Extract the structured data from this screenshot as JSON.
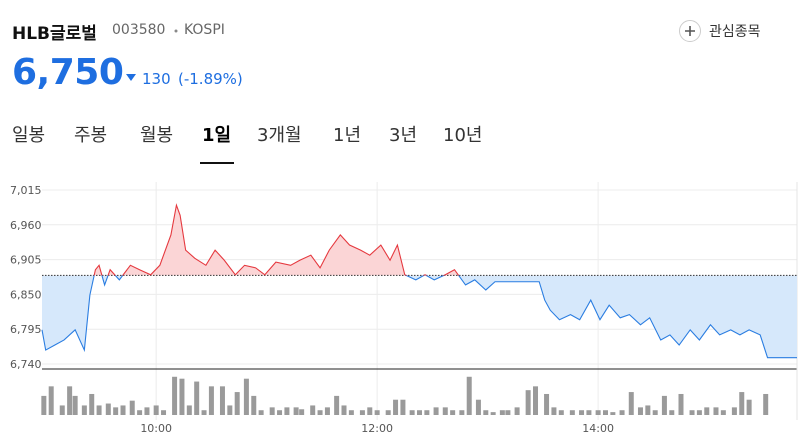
{
  "header": {
    "name": "HLB글로벌",
    "code": "003580",
    "market": "KOSPI",
    "price": "6,750",
    "change": "130",
    "change_percent": "(-1.89%)",
    "watchlist": "관심종목"
  },
  "tabs": {
    "items": [
      "일봉",
      "주봉",
      "월봉",
      "1일",
      "3개월",
      "1년",
      "3년",
      "10년"
    ],
    "active": 3
  },
  "chart_data": {
    "type": "line",
    "x": [
      538,
      540,
      545,
      550,
      556,
      561,
      564,
      567,
      569,
      572,
      575,
      580,
      586,
      591,
      597,
      602,
      608,
      611,
      613,
      616,
      621,
      627,
      632,
      637,
      643,
      648,
      654,
      659,
      665,
      673,
      678,
      684,
      689,
      694,
      700,
      705,
      711,
      716,
      722,
      727,
      731,
      735,
      741,
      746,
      751,
      757,
      762,
      768,
      773,
      779,
      784,
      792,
      803,
      808,
      811,
      814,
      819,
      825,
      830,
      836,
      841,
      846,
      852,
      857,
      863,
      868,
      874,
      879,
      884,
      890,
      895,
      901,
      906,
      912,
      917,
      922,
      928,
      932,
      948
    ],
    "values": [
      6794,
      6762,
      6770,
      6778,
      6794,
      6762,
      6849,
      6889,
      6896,
      6865,
      6889,
      6873,
      6896,
      6889,
      6881,
      6896,
      6944,
      6991,
      6975,
      6920,
      6907,
      6896,
      6920,
      6904,
      6881,
      6896,
      6892,
      6881,
      6901,
      6896,
      6904,
      6912,
      6892,
      6920,
      6944,
      6928,
      6920,
      6912,
      6928,
      6904,
      6928,
      6881,
      6873,
      6881,
      6873,
      6881,
      6889,
      6865,
      6873,
      6857,
      6870,
      6870,
      6870,
      6870,
      6841,
      6825,
      6810,
      6818,
      6810,
      6841,
      6810,
      6833,
      6813,
      6818,
      6802,
      6813,
      6778,
      6786,
      6770,
      6794,
      6778,
      6802,
      6786,
      6794,
      6786,
      6794,
      6786,
      6750,
      6750
    ],
    "baseline": 6880,
    "xlim": [
      538,
      948
    ],
    "ylim": [
      6740,
      7015
    ],
    "yticks": [
      {
        "value": 6740,
        "label": "6,740"
      },
      {
        "value": 6795,
        "label": "6,795"
      },
      {
        "value": 6850,
        "label": "6,850"
      },
      {
        "value": 6905,
        "label": "6,905"
      },
      {
        "value": 6960,
        "label": "6,960"
      },
      {
        "value": 7015,
        "label": "7,015"
      }
    ],
    "xticks": [
      {
        "value": 600,
        "label": "10:00"
      },
      {
        "value": 720,
        "label": "12:00"
      },
      {
        "value": 840,
        "label": "14:00"
      }
    ],
    "grid": true,
    "colors": {
      "above": "#e5393f",
      "below": "#2a7de1",
      "fill_above": "#fbd5d6",
      "fill_below": "#d6e8fb",
      "baseline": "#333"
    },
    "volume": {
      "color": "#9a9a9a",
      "ylim": [
        0,
        45
      ],
      "x": [
        539,
        543,
        549,
        553,
        556,
        561,
        565,
        569,
        574,
        578,
        582,
        587,
        591,
        595,
        600,
        604,
        610,
        614,
        618,
        622,
        626,
        630,
        636,
        640,
        644,
        649,
        653,
        657,
        663,
        667,
        671,
        676,
        679,
        685,
        689,
        693,
        698,
        702,
        706,
        712,
        716,
        720,
        726,
        730,
        734,
        739,
        743,
        747,
        752,
        757,
        761,
        766,
        770,
        775,
        779,
        783,
        788,
        791,
        796,
        802,
        806,
        812,
        816,
        820,
        826,
        831,
        835,
        840,
        844,
        848,
        853,
        858,
        863,
        867,
        871,
        876,
        880,
        885,
        891,
        895,
        899,
        904,
        908,
        914,
        918,
        922,
        931
      ],
      "values": [
        20,
        30,
        10,
        30,
        20,
        10,
        22,
        10,
        12,
        8,
        10,
        15,
        5,
        8,
        10,
        5,
        40,
        38,
        10,
        35,
        5,
        30,
        30,
        10,
        24,
        38,
        20,
        5,
        8,
        5,
        8,
        8,
        6,
        10,
        5,
        8,
        20,
        10,
        5,
        5,
        8,
        5,
        5,
        16,
        16,
        5,
        5,
        5,
        8,
        8,
        5,
        5,
        40,
        16,
        5,
        3,
        5,
        5,
        8,
        26,
        30,
        22,
        8,
        5,
        5,
        5,
        5,
        5,
        5,
        3,
        5,
        24,
        8,
        10,
        5,
        20,
        5,
        22,
        5,
        5,
        8,
        8,
        5,
        8,
        24,
        16,
        22
      ]
    }
  }
}
